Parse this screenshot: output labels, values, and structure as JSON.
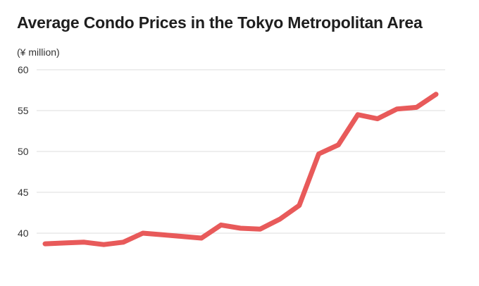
{
  "title": "Average Condo Prices in the Tokyo Metropolitan Area",
  "colors": {
    "line": "#e85a5a",
    "grid": "#dddddd",
    "text": "#333333"
  },
  "chart_data": {
    "type": "line",
    "title": "Average Condo Prices in the Tokyo Metropolitan Area",
    "ylabel": "(¥ million)",
    "xlabel": "",
    "x": [
      1,
      2,
      3,
      4,
      5,
      6,
      7,
      8,
      9,
      10,
      11,
      12,
      13,
      14,
      15,
      16,
      17,
      18,
      19,
      20,
      21
    ],
    "series": [
      {
        "values": [
          38.7,
          38.8,
          38.9,
          38.6,
          38.9,
          40.0,
          39.8,
          39.6,
          39.4,
          41.0,
          40.6,
          40.5,
          41.7,
          43.4,
          49.7,
          50.8,
          54.5,
          54.0,
          55.2,
          55.4,
          57.0
        ]
      }
    ],
    "ylim": [
      38.5,
      60
    ],
    "yticks": [
      40,
      45,
      50,
      55,
      60
    ],
    "grid": true,
    "legend": "none"
  }
}
